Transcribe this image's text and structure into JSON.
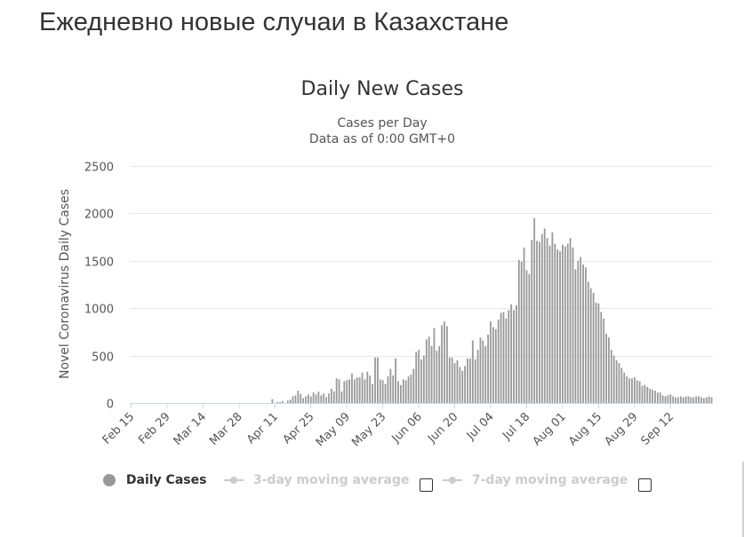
{
  "page": {
    "title": "Ежедневно новые случаи в Казахстане"
  },
  "chart_data": {
    "type": "bar",
    "title": "Daily New Cases",
    "subtitle": [
      "Cases per Day",
      "Data as of 0:00 GMT+0"
    ],
    "ylabel": "Novel Coronavirus Daily Cases",
    "xlabel": "",
    "ylim": [
      0,
      2500
    ],
    "yticks": [
      0,
      500,
      1000,
      1500,
      2000,
      2500
    ],
    "grid": true,
    "color": "#999999",
    "start_date": "Feb 15",
    "x_tick_labels": [
      "Feb 15",
      "Feb 29",
      "Mar 14",
      "Mar 28",
      "Apr 11",
      "Apr 25",
      "May 09",
      "May 23",
      "Jun 06",
      "Jun 20",
      "Jul 04",
      "Jul 18",
      "Aug 01",
      "Aug 15",
      "Aug 29",
      "Sep 12"
    ],
    "x_tick_every_days": 14,
    "series": [
      {
        "name": "Daily Cases",
        "values": [
          0,
          0,
          0,
          0,
          0,
          0,
          0,
          0,
          0,
          0,
          0,
          0,
          0,
          0,
          0,
          0,
          0,
          0,
          0,
          0,
          0,
          0,
          0,
          0,
          0,
          0,
          0,
          0,
          0,
          0,
          0,
          0,
          0,
          0,
          0,
          0,
          0,
          0,
          0,
          0,
          0,
          0,
          0,
          0,
          0,
          0,
          0,
          0,
          0,
          0,
          0,
          0,
          0,
          0,
          0,
          40,
          0,
          10,
          10,
          20,
          0,
          25,
          35,
          70,
          80,
          130,
          95,
          50,
          70,
          90,
          70,
          110,
          90,
          120,
          80,
          100,
          60,
          100,
          150,
          120,
          260,
          250,
          120,
          230,
          240,
          250,
          310,
          250,
          270,
          270,
          320,
          250,
          330,
          290,
          200,
          480,
          480,
          250,
          240,
          200,
          280,
          360,
          290,
          470,
          230,
          190,
          250,
          240,
          280,
          300,
          360,
          540,
          560,
          460,
          500,
          670,
          700,
          600,
          790,
          550,
          600,
          820,
          860,
          810,
          480,
          480,
          420,
          450,
          380,
          340,
          390,
          470,
          470,
          660,
          460,
          560,
          690,
          660,
          600,
          720,
          860,
          800,
          780,
          880,
          950,
          960,
          890,
          980,
          1040,
          980,
          1030,
          1510,
          1490,
          1640,
          1400,
          1360,
          1720,
          1950,
          1710,
          1700,
          1780,
          1840,
          1740,
          1660,
          1800,
          1680,
          1620,
          1600,
          1670,
          1650,
          1680,
          1740,
          1640,
          1410,
          1500,
          1540,
          1460,
          1430,
          1280,
          1210,
          1160,
          1060,
          1050,
          960,
          890,
          730,
          690,
          560,
          500,
          450,
          420,
          370,
          320,
          280,
          260,
          260,
          270,
          240,
          230,
          180,
          190,
          170,
          150,
          140,
          130,
          110,
          110,
          80,
          70,
          80,
          90,
          70,
          60,
          60,
          70,
          60,
          70,
          70,
          60,
          60,
          70,
          70,
          60,
          50,
          60,
          70,
          60
        ]
      },
      {
        "name": "3-day moving average",
        "values": []
      },
      {
        "name": "7-day moving average",
        "values": []
      }
    ],
    "legend": {
      "position": "bottom",
      "items": [
        {
          "label": "Daily Cases",
          "active": true,
          "color": "#999999"
        },
        {
          "label": "3-day moving average",
          "active": false,
          "color": "#cccccc"
        },
        {
          "label": "7-day moving average",
          "active": false,
          "color": "#cccccc"
        }
      ]
    }
  }
}
